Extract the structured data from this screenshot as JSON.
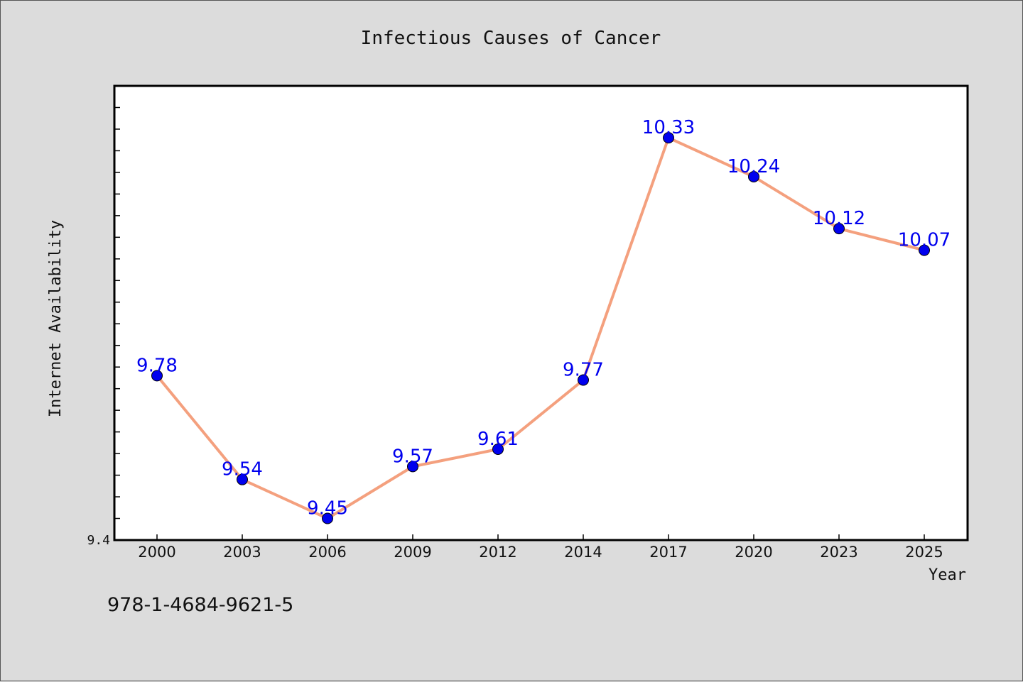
{
  "chart_data": {
    "type": "line",
    "title": "Infectious Causes of Cancer",
    "xlabel": "Year",
    "ylabel": "Internet Availability",
    "categories": [
      "2000",
      "2003",
      "2006",
      "2009",
      "2012",
      "2014",
      "2017",
      "2020",
      "2023",
      "2025"
    ],
    "series": [
      {
        "values": [
          9.78,
          9.54,
          9.45,
          9.57,
          9.61,
          9.77,
          10.33,
          10.24,
          10.12,
          10.07
        ],
        "line_color": "#f4a07e",
        "marker_color": "#0000ee"
      }
    ],
    "data_labels": [
      "9.78",
      "9.54",
      "9.45",
      "9.57",
      "9.61",
      "9.77",
      "10.33",
      "10.24",
      "10.12",
      "10.07"
    ],
    "ylim": [
      9.4,
      10.45
    ],
    "yticks_labeled": [
      "9.4"
    ],
    "grid": false,
    "label_color": "#0000ee",
    "plot_background": "#ffffff",
    "page_background": "#dcdcdc"
  },
  "footer": {
    "isbn": "978-1-4684-9621-5"
  }
}
